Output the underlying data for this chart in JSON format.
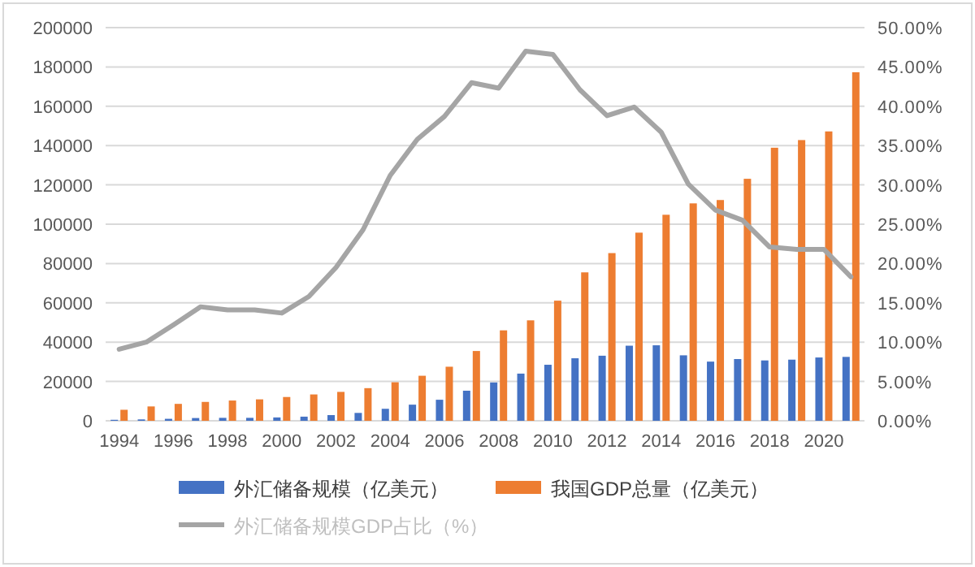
{
  "chart_data": {
    "type": "bar",
    "categories": [
      "1994",
      null,
      "1996",
      null,
      "1998",
      null,
      "2000",
      null,
      "2002",
      null,
      "2004",
      null,
      "2006",
      null,
      "2008",
      null,
      "2010",
      null,
      "2012",
      null,
      "2014",
      null,
      "2016",
      null,
      "2018",
      null,
      "2020",
      null
    ],
    "series": [
      {
        "name": "外汇储备规模（亿美元）",
        "color": "#4472c4",
        "values": [
          500,
          700,
          1000,
          1400,
          1500,
          1500,
          1700,
          2100,
          2900,
          4000,
          6100,
          8200,
          10700,
          15300,
          19500,
          24000,
          28500,
          31800,
          33100,
          38200,
          38400,
          33300,
          30100,
          31400,
          30700,
          31100,
          32200,
          32500
        ]
      },
      {
        "name": "我国GDP总量（亿美元）",
        "color": "#ed7d31",
        "values": [
          5600,
          7300,
          8600,
          9600,
          10300,
          10900,
          12100,
          13400,
          14700,
          16600,
          19600,
          22900,
          27500,
          35500,
          46000,
          51100,
          61100,
          75500,
          85300,
          95700,
          104800,
          110600,
          112300,
          123100,
          138900,
          142800,
          147200,
          177300
        ]
      },
      {
        "name": "外汇储备规模GDP占比（%）",
        "color": "#a5a5a5",
        "type": "line",
        "axis": "y2",
        "values": [
          9.1,
          10.0,
          12.2,
          14.5,
          14.1,
          14.1,
          13.7,
          15.8,
          19.5,
          24.3,
          31.2,
          35.8,
          38.7,
          43.0,
          42.3,
          47.0,
          46.6,
          42.1,
          38.8,
          39.9,
          36.7,
          30.1,
          26.8,
          25.5,
          22.1,
          21.8,
          21.8,
          18.3
        ]
      }
    ],
    "ylim": [
      0,
      200000
    ],
    "yticks": [
      0,
      20000,
      40000,
      60000,
      80000,
      100000,
      120000,
      140000,
      160000,
      180000,
      200000
    ],
    "y2lim": [
      0,
      50
    ],
    "y2ticks": [
      {
        "value": 0,
        "label": "0.00%"
      },
      {
        "value": 5,
        "label": "5.00%"
      },
      {
        "value": 10,
        "label": "10.00%"
      },
      {
        "value": 15,
        "label": "15.00%"
      },
      {
        "value": 20,
        "label": "20.00%"
      },
      {
        "value": 25,
        "label": "25.00%"
      },
      {
        "value": 30,
        "label": "30.00%"
      },
      {
        "value": 35,
        "label": "35.00%"
      },
      {
        "value": 40,
        "label": "40.00%"
      },
      {
        "value": 45,
        "label": "45.00%"
      },
      {
        "value": 50,
        "label": "50.00%"
      }
    ],
    "grid": "y",
    "legend": "bottom"
  }
}
